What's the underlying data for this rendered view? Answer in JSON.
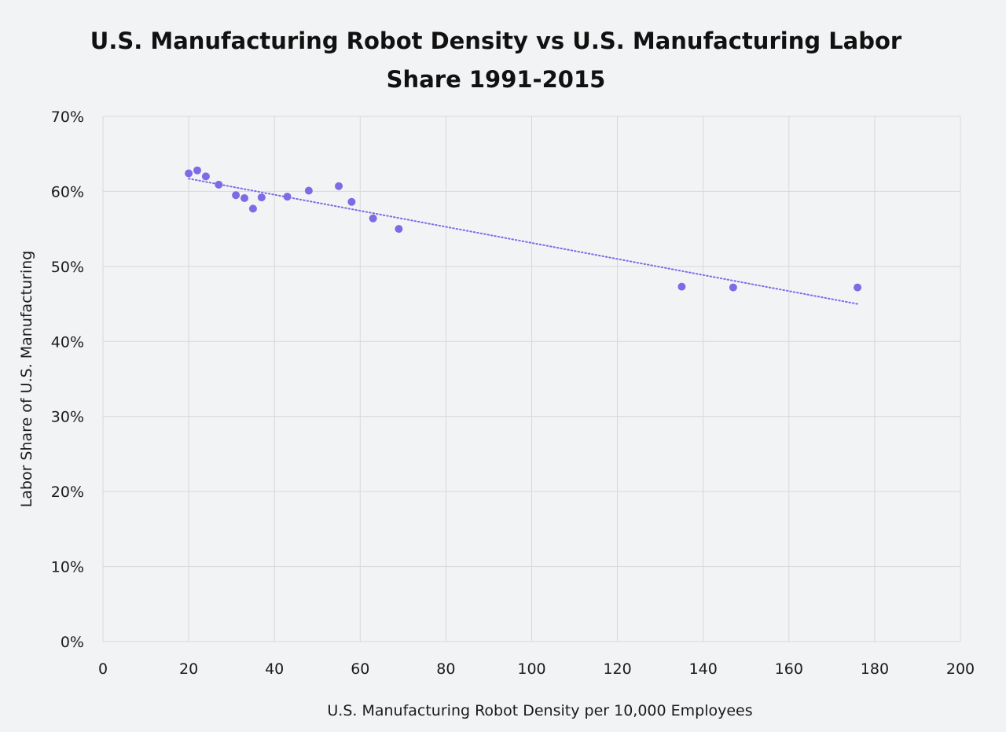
{
  "chart_data": {
    "type": "scatter",
    "title_line1": "U.S. Manufacturing Robot Density vs U.S. Manufacturing Labor",
    "title_line2": "Share 1991-2015",
    "xlabel": "U.S. Manufacturing Robot Density per 10,000 Employees",
    "ylabel": "Labor Share of U.S. Manufacturing",
    "xlim": [
      0,
      200
    ],
    "ylim": [
      0,
      70
    ],
    "x_ticks": [
      0,
      20,
      40,
      60,
      80,
      100,
      120,
      140,
      160,
      180,
      200
    ],
    "y_ticks": [
      0,
      10,
      20,
      30,
      40,
      50,
      60,
      70
    ],
    "y_tick_format": "percent",
    "grid": true,
    "point_color": "#7b6ce6",
    "trendline": {
      "type": "linear",
      "style": "dotted",
      "color": "#7b6ce6",
      "x_start": 20,
      "y_start": 61.7,
      "x_end": 176,
      "y_end": 45.0
    },
    "points": [
      {
        "x": 20,
        "y": 62.4
      },
      {
        "x": 22,
        "y": 62.8
      },
      {
        "x": 24,
        "y": 62.0
      },
      {
        "x": 27,
        "y": 60.9
      },
      {
        "x": 31,
        "y": 59.5
      },
      {
        "x": 33,
        "y": 59.1
      },
      {
        "x": 35,
        "y": 57.7
      },
      {
        "x": 37,
        "y": 59.2
      },
      {
        "x": 43,
        "y": 59.3
      },
      {
        "x": 48,
        "y": 60.1
      },
      {
        "x": 55,
        "y": 60.7
      },
      {
        "x": 58,
        "y": 58.6
      },
      {
        "x": 63,
        "y": 56.4
      },
      {
        "x": 69,
        "y": 55.0
      },
      {
        "x": 135,
        "y": 47.3
      },
      {
        "x": 147,
        "y": 47.2
      },
      {
        "x": 176,
        "y": 47.2
      }
    ]
  }
}
